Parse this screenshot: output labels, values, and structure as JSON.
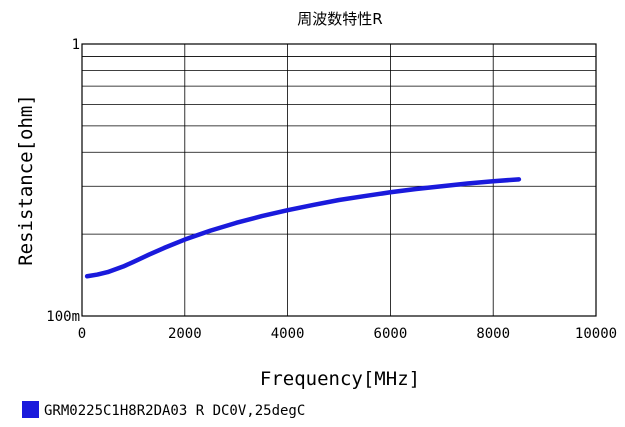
{
  "chart_data": {
    "type": "line",
    "title": "周波数特性R",
    "xlabel": "Frequency[MHz]",
    "ylabel": "Resistance[ohm]",
    "xlim": [
      0,
      10000
    ],
    "ylim": [
      0.1,
      1
    ],
    "y_scale": "log",
    "grid": true,
    "legend_position": "bottom-left",
    "x_ticks": [
      0,
      2000,
      4000,
      6000,
      8000,
      10000
    ],
    "x_tick_labels": [
      "0",
      "2000",
      "4000",
      "6000",
      "8000",
      "10000"
    ],
    "y_ticks": [
      0.1,
      1
    ],
    "y_tick_labels": [
      "100m",
      "1"
    ],
    "series": [
      {
        "name": "GRM0225C1H8R2DA03 R DC0V,25degC",
        "color": "#1a1adc",
        "x": [
          100,
          300,
          500,
          800,
          1000,
          1300,
          1600,
          2000,
          2500,
          3000,
          3500,
          4000,
          4500,
          5000,
          5500,
          6000,
          6500,
          7000,
          7500,
          8000,
          8500
        ],
        "y": [
          0.14,
          0.142,
          0.145,
          0.152,
          0.158,
          0.168,
          0.178,
          0.191,
          0.206,
          0.22,
          0.233,
          0.245,
          0.256,
          0.267,
          0.276,
          0.285,
          0.293,
          0.3,
          0.307,
          0.313,
          0.318
        ]
      }
    ]
  }
}
